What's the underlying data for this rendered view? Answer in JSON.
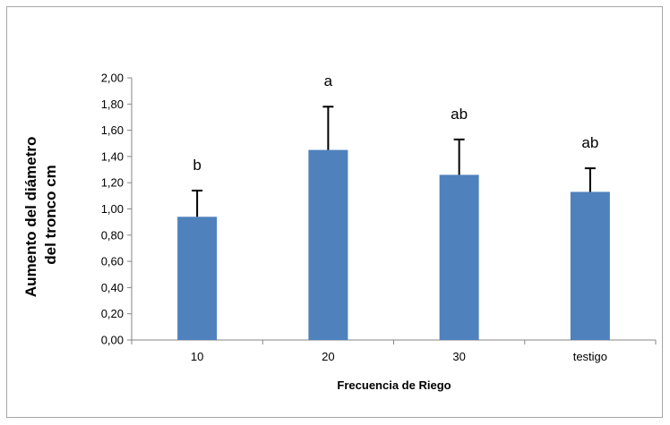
{
  "chart_data": {
    "type": "bar",
    "categories": [
      "10",
      "20",
      "30",
      "testigo"
    ],
    "values": [
      0.94,
      1.45,
      1.26,
      1.13
    ],
    "error_upper": [
      0.2,
      0.33,
      0.27,
      0.18
    ],
    "group_letters": [
      "b",
      "a",
      "ab",
      "ab"
    ],
    "title": "",
    "xlabel": "Frecuencia de Riego",
    "ylabel": "Aumento del diámetro del tronco cm",
    "ylabel_lines": [
      "Aumento del diámetro",
      "del tronco cm"
    ],
    "ylim": [
      0,
      2
    ],
    "ytick_values": [
      0,
      0.2,
      0.4,
      0.6,
      0.8,
      1.0,
      1.2,
      1.4,
      1.6,
      1.8,
      2.0
    ],
    "ytick_labels": [
      "0,00",
      "0,20",
      "0,40",
      "0,60",
      "0,80",
      "1,00",
      "1,20",
      "1,40",
      "1,60",
      "1,80",
      "2,00"
    ],
    "grid": false,
    "legend": "none",
    "colors": {
      "bar": "#4f81bd",
      "axis": "#868686",
      "error_bar": "#000000"
    }
  }
}
